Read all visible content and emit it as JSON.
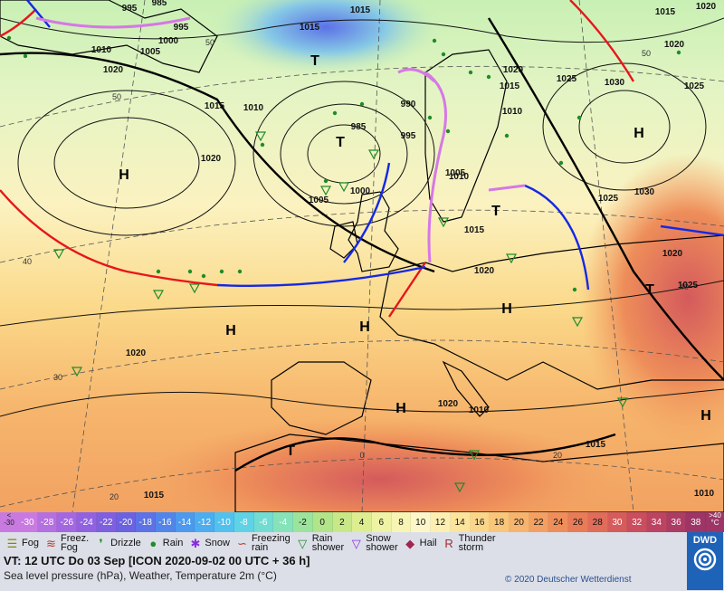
{
  "scale": {
    "low_end": "<\n-30",
    "high_end": ">40\n°C",
    "labels": [
      "-30",
      "-28",
      "-26",
      "-24",
      "-22",
      "-20",
      "-18",
      "-16",
      "-14",
      "-12",
      "-10",
      "-8",
      "-6",
      "-4",
      "-2",
      "0",
      "2",
      "4",
      "6",
      "8",
      "10",
      "12",
      "14",
      "16",
      "18",
      "20",
      "22",
      "24",
      "26",
      "28",
      "30",
      "32",
      "34",
      "36",
      "38"
    ],
    "colors": [
      "#c97ae0",
      "#b46fe0",
      "#a368e0",
      "#9062e0",
      "#7e5fe0",
      "#6a62e0",
      "#5c72e6",
      "#5285ea",
      "#4c99ee",
      "#4cadf0",
      "#52c1ee",
      "#5fd2e6",
      "#72dcd2",
      "#86e2b8",
      "#9ce49c",
      "#b2e48a",
      "#c8e888",
      "#dcee90",
      "#eef4a4",
      "#f8f4b4",
      "#fdf6c8",
      "#fdefb2",
      "#fce49c",
      "#fbd68a",
      "#f9c67a",
      "#f7b46e",
      "#f3a062",
      "#ee8e5a",
      "#e87c58",
      "#e06c5a",
      "#d65c5c",
      "#ca4e5e",
      "#bc4462",
      "#ad3c64",
      "#9d3666"
    ]
  },
  "legend": [
    {
      "icon": "fog-icon",
      "symbol": "☰",
      "color": "#888800",
      "label": "Fog"
    },
    {
      "icon": "freezing-fog-icon",
      "symbol": "≋",
      "color": "#c0392b",
      "label": "Freez.\nFog"
    },
    {
      "icon": "drizzle-icon",
      "symbol": "❜",
      "color": "#1e8c2a",
      "label": "Drizzle"
    },
    {
      "icon": "rain-icon",
      "symbol": "●",
      "color": "#1e8c2a",
      "label": "Rain"
    },
    {
      "icon": "snow-icon",
      "symbol": "✱",
      "color": "#8a2be2",
      "label": "Snow"
    },
    {
      "icon": "freezing-rain-icon",
      "symbol": "∽",
      "color": "#c0392b",
      "label": "Freezing\nrain"
    },
    {
      "icon": "rain-shower-icon",
      "symbol": "▽",
      "color": "#1e8c2a",
      "label": "Rain\nshower"
    },
    {
      "icon": "snow-shower-icon",
      "symbol": "▽",
      "color": "#8a2be2",
      "label": "Snow\nshower"
    },
    {
      "icon": "hail-icon",
      "symbol": "◆",
      "color": "#a0254f",
      "label": "Hail"
    },
    {
      "icon": "thunderstorm-icon",
      "symbol": "R",
      "color": "#a52a2a",
      "label": "Thunder\nstorm"
    }
  ],
  "info": {
    "valid_time": "VT: 12 UTC Do  03 Sep [ICON 2020-09-02  00 UTC + 36 h]",
    "parameters": "Sea level pressure (hPa), Weather, Temperature 2m (°C)",
    "copyright": "© 2020 Deutscher Wetterdienst",
    "logo_text": "DWD"
  },
  "map": {
    "pressure_centers": [
      {
        "type": "H",
        "location": "central Atlantic"
      },
      {
        "type": "H",
        "location": "west of Biscay"
      },
      {
        "type": "H",
        "location": "France"
      },
      {
        "type": "H",
        "location": "central Europe"
      },
      {
        "type": "H",
        "location": "Mediterranean"
      },
      {
        "type": "H",
        "location": "western Russia"
      },
      {
        "type": "H",
        "location": "eastern Mediterranean"
      },
      {
        "type": "T",
        "location": "north of Scotland"
      },
      {
        "type": "T",
        "location": "near Greenland"
      },
      {
        "type": "T",
        "location": "Gibraltar"
      },
      {
        "type": "T",
        "location": "Baltic"
      },
      {
        "type": "T",
        "location": "Black Sea"
      }
    ],
    "isobar_labels": [
      "995",
      "985",
      "995",
      "1000",
      "1005",
      "1010",
      "1015",
      "1020",
      "1010",
      "1015",
      "1015",
      "1005",
      "1000",
      "990",
      "985",
      "995",
      "1005",
      "1010",
      "1015",
      "1020",
      "1015",
      "1010",
      "1020",
      "1025",
      "1030",
      "1025",
      "1020",
      "1015",
      "1025",
      "1030",
      "1020",
      "1025",
      "1020",
      "1010",
      "1020",
      "1020",
      "1015",
      "1015",
      "1010",
      "1020"
    ],
    "latitude_labels": [
      "50",
      "50",
      "40",
      "30",
      "20",
      "40",
      "50",
      "20",
      "0"
    ]
  }
}
